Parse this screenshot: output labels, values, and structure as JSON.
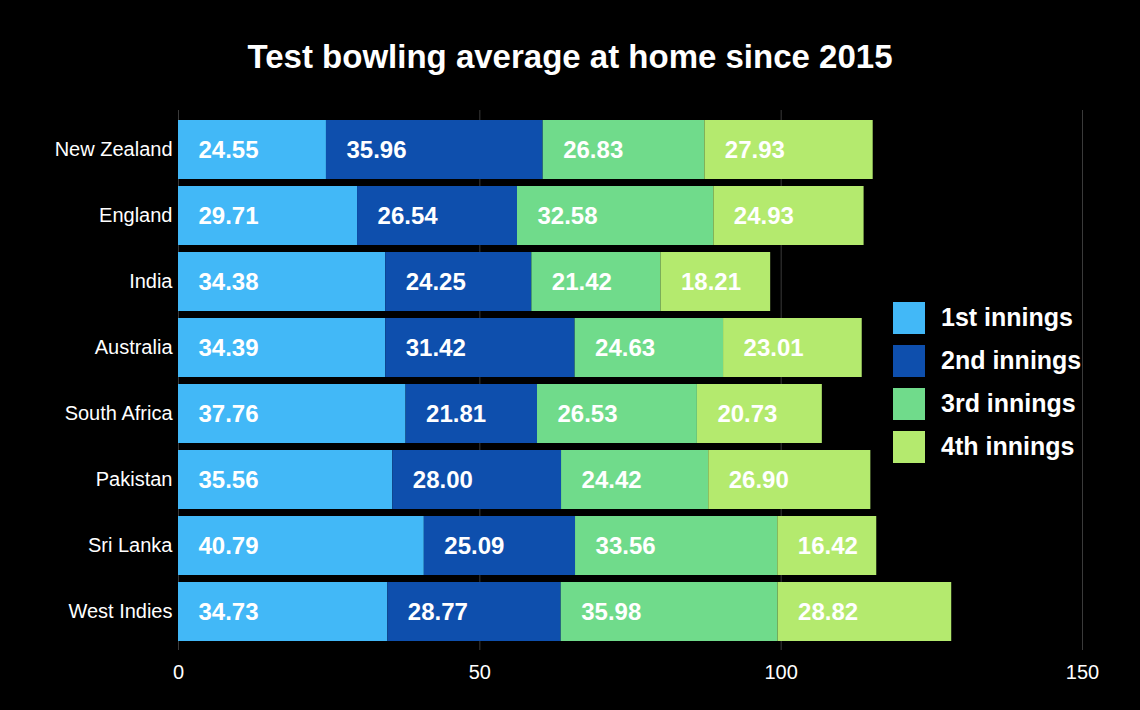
{
  "chart_data": {
    "type": "bar",
    "title": "Test bowling average at home since 2015",
    "orientation": "horizontal",
    "stacked": true,
    "data_labels": true,
    "grid": true,
    "legend": "right",
    "categories": [
      "New Zealand",
      "England",
      "India",
      "Australia",
      "South Africa",
      "Pakistan",
      "Sri Lanka",
      "West Indies"
    ],
    "series": [
      {
        "name": "1st innings",
        "color": "#42b8f7",
        "values": [
          24.55,
          29.71,
          34.38,
          34.39,
          37.76,
          35.56,
          40.79,
          34.73
        ],
        "value_labels": [
          "24.55",
          "29.71",
          "34.38",
          "34.39",
          "37.76",
          "35.56",
          "40.79",
          "34.73"
        ]
      },
      {
        "name": "2nd innings",
        "color": "#0e4fad",
        "values": [
          35.96,
          26.54,
          24.25,
          31.42,
          21.81,
          28.0,
          25.09,
          28.77
        ],
        "value_labels": [
          "35.96",
          "26.54",
          "24.25",
          "31.42",
          "21.81",
          "28.00",
          "25.09",
          "28.77"
        ]
      },
      {
        "name": "3rd innings",
        "color": "#70db8b",
        "values": [
          26.83,
          32.58,
          21.42,
          24.63,
          26.53,
          24.42,
          33.56,
          35.98
        ],
        "value_labels": [
          "26.83",
          "32.58",
          "21.42",
          "24.63",
          "26.53",
          "24.42",
          "33.56",
          "35.98"
        ]
      },
      {
        "name": "4th innings",
        "color": "#b4ea6e",
        "values": [
          27.93,
          24.93,
          18.21,
          23.01,
          20.73,
          26.9,
          16.42,
          28.82
        ],
        "value_labels": [
          "27.93",
          "24.93",
          "18.21",
          "23.01",
          "20.73",
          "26.90",
          "16.42",
          "28.82"
        ]
      }
    ],
    "xlim": [
      0,
      150
    ],
    "xticks": [
      0,
      50,
      100,
      150
    ]
  }
}
